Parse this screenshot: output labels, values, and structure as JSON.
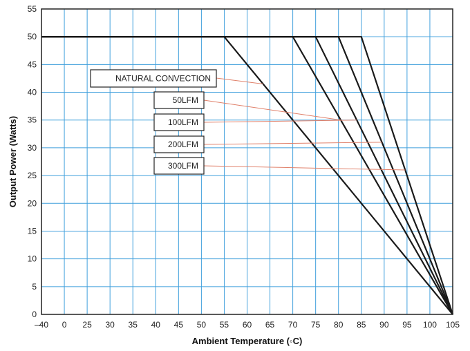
{
  "chart_data": {
    "type": "line",
    "xlabel": "Ambient Temperature (◦C)",
    "ylabel": "Output Power (Watts)",
    "x_categories": [
      "–40",
      "0",
      "25",
      "30",
      "35",
      "40",
      "45",
      "50",
      "55",
      "60",
      "65",
      "70",
      "75",
      "80",
      "85",
      "90",
      "95",
      "100",
      "105"
    ],
    "y_ticks": [
      0,
      5,
      10,
      15,
      20,
      25,
      30,
      35,
      40,
      45,
      50,
      55
    ],
    "ylim": [
      0,
      55
    ],
    "grid": true,
    "colors": {
      "grid": "#3f9fdc",
      "series": "#1a1a1a",
      "leader": "#e0806a",
      "frame": "#222222"
    },
    "series": [
      {
        "name": "NATURAL CONVECTION",
        "points": [
          [
            "–40",
            50
          ],
          [
            "55",
            50
          ],
          [
            "105",
            0
          ]
        ]
      },
      {
        "name": "50LFM",
        "points": [
          [
            "–40",
            50
          ],
          [
            "70",
            50
          ],
          [
            "105",
            0
          ]
        ]
      },
      {
        "name": "100LFM",
        "points": [
          [
            "–40",
            50
          ],
          [
            "75",
            50
          ],
          [
            "105",
            0
          ]
        ]
      },
      {
        "name": "200LFM",
        "points": [
          [
            "–40",
            50
          ],
          [
            "80",
            50
          ],
          [
            "105",
            0
          ]
        ]
      },
      {
        "name": "300LFM",
        "points": [
          [
            "–40",
            50
          ],
          [
            "85",
            50
          ],
          [
            "105",
            0
          ]
        ]
      }
    ]
  }
}
